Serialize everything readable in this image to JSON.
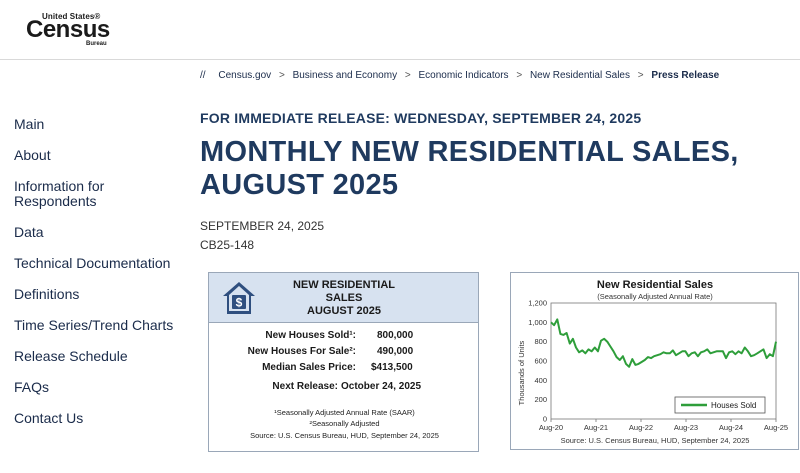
{
  "header": {
    "logo_small": "United States®",
    "logo_big": "Census",
    "logo_bureau": "Bureau"
  },
  "sidebar": {
    "items": [
      {
        "label": "Main"
      },
      {
        "label": "About"
      },
      {
        "label": "Information for Respondents"
      },
      {
        "label": "Data"
      },
      {
        "label": "Technical Documentation"
      },
      {
        "label": "Definitions"
      },
      {
        "label": "Time Series/Trend Charts"
      },
      {
        "label": "Release Schedule"
      },
      {
        "label": "FAQs"
      },
      {
        "label": "Contact Us"
      }
    ]
  },
  "breadcrumb": {
    "lead": "//",
    "items": [
      "Census.gov",
      "Business and Economy",
      "Economic Indicators",
      "New Residential Sales"
    ],
    "current": "Press Release"
  },
  "main": {
    "release_line": "FOR IMMEDIATE RELEASE: WEDNESDAY, SEPTEMBER 24, 2025",
    "title": "MONTHLY NEW RESIDENTIAL SALES, AUGUST 2025",
    "date": "SEPTEMBER 24, 2025",
    "code": "CB25-148"
  },
  "card": {
    "title_1": "NEW RESIDENTIAL",
    "title_2": "SALES",
    "title_3": "AUGUST 2025",
    "rows": [
      {
        "label": "New Houses Sold¹:",
        "value": "800,000"
      },
      {
        "label": "New Houses For Sale²:",
        "value": "490,000"
      },
      {
        "label": "Median Sales Price:",
        "value": "$413,500"
      }
    ],
    "next_label": "Next Release:",
    "next_value": "October 24, 2025",
    "note_1": "¹Seasonally Adjusted Annual Rate (SAAR)",
    "note_2": "²Seasonally Adjusted",
    "source": "Source:  U.S. Census Bureau, HUD, September 24, 2025",
    "icon": "house-dollar-icon"
  },
  "chart_data": {
    "type": "line",
    "title": "New Residential Sales",
    "subtitle": "(Seasonally Adjusted Annual Rate)",
    "ylabel": "Thousands of Units",
    "xlabel": "",
    "ylim": [
      0,
      1200
    ],
    "yticks": [
      "0",
      "200",
      "400",
      "600",
      "800",
      "1,000",
      "1,200"
    ],
    "xticks": [
      "Aug-20",
      "Aug-21",
      "Aug-22",
      "Aug-23",
      "Aug-24",
      "Aug-25"
    ],
    "source": "Source: U.S. Census Bureau, HUD, September 24, 2025",
    "legend_position": "bottom-right",
    "color": "#2e9e3a",
    "series": [
      {
        "name": "Houses Sold",
        "values": [
          1000,
          970,
          1030,
          880,
          870,
          890,
          780,
          830,
          740,
          690,
          710,
          680,
          720,
          700,
          740,
          700,
          810,
          830,
          800,
          750,
          700,
          640,
          610,
          650,
          570,
          540,
          620,
          560,
          570,
          590,
          610,
          640,
          630,
          650,
          660,
          670,
          690,
          680,
          680,
          710,
          660,
          680,
          700,
          700,
          650,
          680,
          690,
          650,
          690,
          700,
          720,
          680,
          690,
          700,
          700,
          700,
          630,
          690,
          700,
          670,
          700,
          680,
          740,
          700,
          650,
          660,
          680,
          700,
          720,
          630,
          670,
          650,
          800
        ]
      }
    ]
  }
}
